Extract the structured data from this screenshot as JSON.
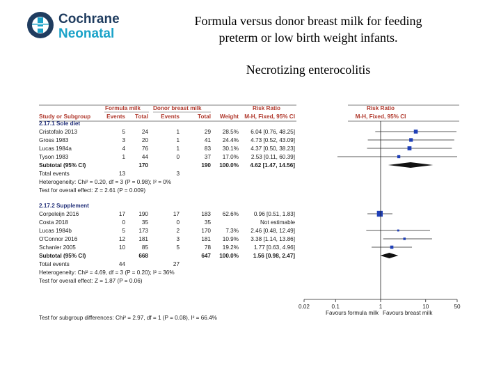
{
  "logo": {
    "line1": "Cochrane",
    "line2": "Neonatal"
  },
  "header": {
    "title": "Formula versus donor breast milk for feeding preterm or low birth weight infants.",
    "subtitle": "Necrotizing enterocolitis"
  },
  "colors": {
    "brand_dark": "#1f3c5f",
    "brand_light": "#1aa2c8",
    "header_red": "#b0382c",
    "group_blue": "#23317a",
    "marker_blue": "#1f3fb7"
  },
  "chart_data": {
    "type": "forest",
    "columns": {
      "study": "Study or Subgroup",
      "formula_group": "Formula milk",
      "donor_group": "Donor breast milk",
      "rr_header": "Risk Ratio",
      "formula_events": "Events",
      "formula_total": "Total",
      "donor_events": "Events",
      "donor_total": "Total",
      "weight": "Weight",
      "ci": "M-H, Fixed, 95% CI",
      "plot_header": "Risk Ratio",
      "plot_sub": "M-H, Fixed, 95% CI"
    },
    "x_scale": "log",
    "xlim": [
      0.02,
      50
    ],
    "ticks": [
      0.02,
      0.1,
      1,
      10,
      50
    ],
    "tick_labels": [
      "0.02",
      "0.1",
      "1",
      "10",
      "50"
    ],
    "favours_left": "Favours formula milk",
    "favours_right": "Favours breast milk",
    "groups": [
      {
        "name": "2.17.1 Sole diet",
        "studies": [
          {
            "study": "Cristofalo 2013",
            "fe": "5",
            "ft": "24",
            "de": "1",
            "dt": "29",
            "weight": "28.5%",
            "ci_text": "6.04 [0.76, 48.25]",
            "rr": 6.04,
            "lo": 0.76,
            "hi": 48.25
          },
          {
            "study": "Gross 1983",
            "fe": "3",
            "ft": "20",
            "de": "1",
            "dt": "41",
            "weight": "24.4%",
            "ci_text": "4.73 [0.52, 43.09]",
            "rr": 4.73,
            "lo": 0.52,
            "hi": 43.09
          },
          {
            "study": "Lucas 1984a",
            "fe": "4",
            "ft": "76",
            "de": "1",
            "dt": "83",
            "weight": "30.1%",
            "ci_text": "4.37 [0.50, 38.23]",
            "rr": 4.37,
            "lo": 0.5,
            "hi": 38.23
          },
          {
            "study": "Tyson 1983",
            "fe": "1",
            "ft": "44",
            "de": "0",
            "dt": "37",
            "weight": "17.0%",
            "ci_text": "2.53 [0.11, 60.39]",
            "rr": 2.53,
            "lo": 0.11,
            "hi": 60.39
          }
        ],
        "subtotal": {
          "label": "Subtotal (95% CI)",
          "ft": "170",
          "dt": "190",
          "weight": "100.0%",
          "ci_text": "4.62 [1.47, 14.56]",
          "rr": 4.62,
          "lo": 1.47,
          "hi": 14.56
        },
        "total_events": {
          "label": "Total events",
          "fe": "13",
          "de": "3"
        },
        "heterogeneity": "Heterogeneity: Chi² = 0.20, df = 3 (P = 0.98); I² = 0%",
        "overall": "Test for overall effect: Z = 2.61 (P = 0.009)"
      },
      {
        "name": "2.17.2 Supplement",
        "studies": [
          {
            "study": "Corpeleijn 2016",
            "fe": "17",
            "ft": "190",
            "de": "17",
            "dt": "183",
            "weight": "62.6%",
            "ci_text": "0.96 [0.51, 1.83]",
            "rr": 0.96,
            "lo": 0.51,
            "hi": 1.83
          },
          {
            "study": "Costa 2018",
            "fe": "0",
            "ft": "35",
            "de": "0",
            "dt": "35",
            "weight": "",
            "ci_text": "Not estimable",
            "rr": null,
            "lo": null,
            "hi": null
          },
          {
            "study": "Lucas 1984b",
            "fe": "5",
            "ft": "173",
            "de": "2",
            "dt": "170",
            "weight": "7.3%",
            "ci_text": "2.46 [0.48, 12.49]",
            "rr": 2.46,
            "lo": 0.48,
            "hi": 12.49
          },
          {
            "study": "O'Connor 2016",
            "fe": "12",
            "ft": "181",
            "de": "3",
            "dt": "181",
            "weight": "10.9%",
            "ci_text": "3.38 [1.14, 13.86]",
            "rr": 3.38,
            "lo": 1.14,
            "hi": 13.86
          },
          {
            "study": "Schanler 2005",
            "fe": "10",
            "ft": "85",
            "de": "5",
            "dt": "78",
            "weight": "19.2%",
            "ci_text": "1.77 [0.63, 4.96]",
            "rr": 1.77,
            "lo": 0.63,
            "hi": 4.96
          }
        ],
        "subtotal": {
          "label": "Subtotal (95% CI)",
          "ft": "668",
          "dt": "647",
          "weight": "100.0%",
          "ci_text": "1.56 [0.98, 2.47]",
          "rr": 1.56,
          "lo": 0.98,
          "hi": 2.47
        },
        "total_events": {
          "label": "Total events",
          "fe": "44",
          "de": "27"
        },
        "heterogeneity": "Heterogeneity: Chi² = 4.69, df = 3 (P = 0.20); I² = 36%",
        "overall": "Test for overall effect: Z = 1.87 (P = 0.06)"
      }
    ],
    "subgroup_test": "Test for subgroup differences: Chi² = 2.97, df = 1 (P = 0.08), I² = 66.4%"
  }
}
